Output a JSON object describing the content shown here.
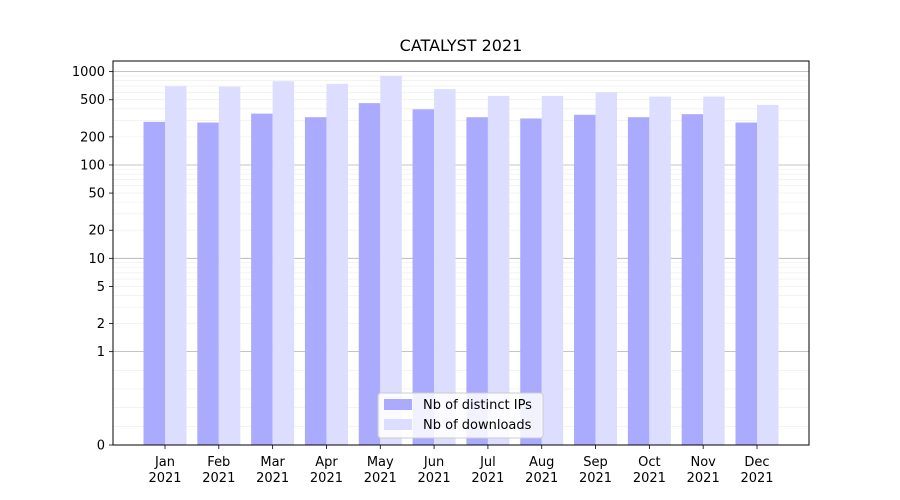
{
  "chart_data": {
    "type": "bar",
    "title": "CATALYST 2021",
    "xlabel": "",
    "ylabel": "",
    "yscale": "symlog",
    "ylim": [
      0,
      1300
    ],
    "yticks": [
      0,
      1,
      2,
      5,
      10,
      20,
      50,
      100,
      200,
      500,
      1000
    ],
    "categories": [
      [
        "Jan",
        "2021"
      ],
      [
        "Feb",
        "2021"
      ],
      [
        "Mar",
        "2021"
      ],
      [
        "Apr",
        "2021"
      ],
      [
        "May",
        "2021"
      ],
      [
        "Jun",
        "2021"
      ],
      [
        "Jul",
        "2021"
      ],
      [
        "Aug",
        "2021"
      ],
      [
        "Sep",
        "2021"
      ],
      [
        "Oct",
        "2021"
      ],
      [
        "Nov",
        "2021"
      ],
      [
        "Dec",
        "2021"
      ]
    ],
    "series": [
      {
        "name": "Nb of distinct IPs",
        "color": "#aaaaff",
        "values": [
          290,
          285,
          355,
          325,
          460,
          395,
          325,
          315,
          345,
          325,
          350,
          285
        ]
      },
      {
        "name": "Nb of downloads",
        "color": "#ddddff",
        "values": [
          700,
          690,
          790,
          740,
          900,
          650,
          550,
          550,
          600,
          540,
          540,
          440
        ]
      }
    ],
    "grid": true,
    "legend_position": "bottom-center"
  }
}
